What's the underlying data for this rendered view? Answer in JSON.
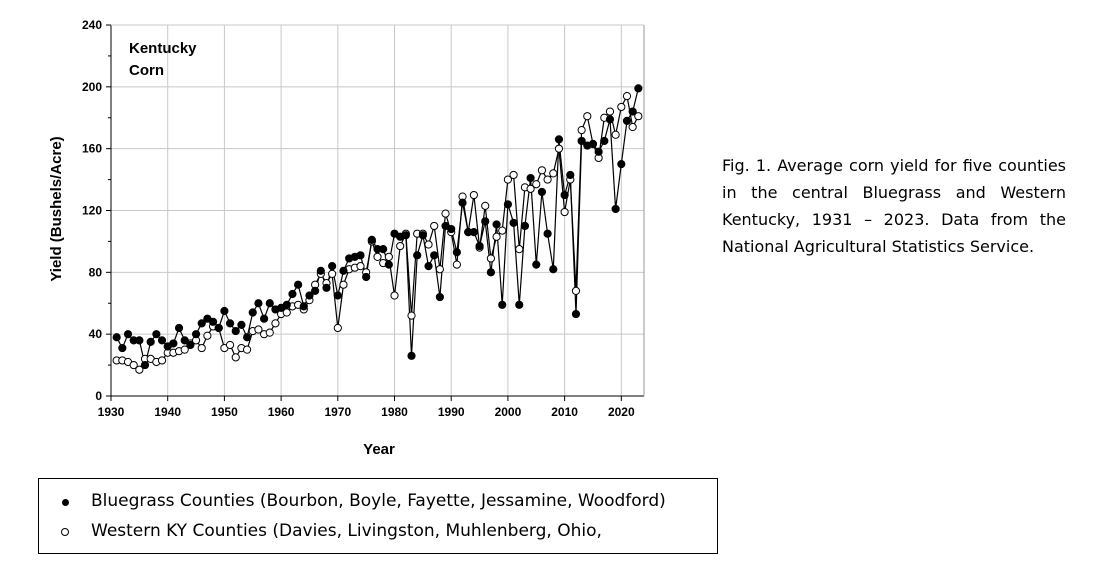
{
  "chart_data": {
    "type": "line",
    "inset_label": [
      "Kentucky",
      "Corn"
    ],
    "xlabel": "Year",
    "ylabel": "Yield (Bushels/Acre)",
    "xlim": [
      1930,
      2024
    ],
    "ylim": [
      0,
      240
    ],
    "xticks": [
      1930,
      1940,
      1950,
      1960,
      1970,
      1980,
      1990,
      2000,
      2010,
      2020
    ],
    "yticks": [
      0,
      40,
      80,
      120,
      160,
      200,
      240
    ],
    "grid": true,
    "x": [
      1931,
      1932,
      1933,
      1934,
      1935,
      1936,
      1937,
      1938,
      1939,
      1940,
      1941,
      1942,
      1943,
      1944,
      1945,
      1946,
      1947,
      1948,
      1949,
      1950,
      1951,
      1952,
      1953,
      1954,
      1955,
      1956,
      1957,
      1958,
      1959,
      1960,
      1961,
      1962,
      1963,
      1964,
      1965,
      1966,
      1967,
      1968,
      1969,
      1970,
      1971,
      1972,
      1973,
      1974,
      1975,
      1976,
      1977,
      1978,
      1979,
      1980,
      1981,
      1982,
      1983,
      1984,
      1985,
      1986,
      1987,
      1988,
      1989,
      1990,
      1991,
      1992,
      1993,
      1994,
      1995,
      1996,
      1997,
      1998,
      1999,
      2000,
      2001,
      2002,
      2003,
      2004,
      2005,
      2006,
      2007,
      2008,
      2009,
      2010,
      2011,
      2012,
      2013,
      2014,
      2015,
      2016,
      2017,
      2018,
      2019,
      2020,
      2021,
      2022,
      2023
    ],
    "series": [
      {
        "name": "Bluegrass Counties (Bourbon, Boyle, Fayette, Jessamine, Woodford)",
        "marker": "filled",
        "values": [
          38,
          31,
          40,
          36,
          36,
          20,
          35,
          40,
          36,
          32,
          34,
          44,
          36,
          33,
          40,
          47,
          50,
          48,
          44,
          55,
          47,
          42,
          46,
          38,
          54,
          60,
          50,
          60,
          56,
          57,
          59,
          66,
          72,
          58,
          65,
          68,
          81,
          70,
          84,
          65,
          81,
          89,
          90,
          91,
          77,
          101,
          95,
          95,
          85,
          105,
          103,
          104,
          26,
          91,
          104,
          84,
          91,
          64,
          110,
          108,
          93,
          125,
          106,
          106,
          97,
          113,
          80,
          111,
          59,
          124,
          112,
          59,
          110,
          141,
          85,
          132,
          105,
          82,
          166,
          130,
          143,
          53,
          165,
          162,
          163,
          158,
          165,
          179,
          121,
          150,
          178,
          184,
          199
        ]
      },
      {
        "name": "Western KY Counties (Davies, Livingston, Muhlenberg, Ohio,",
        "marker": "open",
        "values": [
          23,
          23,
          22,
          20,
          17,
          24,
          24,
          22,
          23,
          28,
          28,
          29,
          30,
          34,
          36,
          31,
          39,
          45,
          44,
          31,
          33,
          25,
          31,
          30,
          42,
          43,
          40,
          41,
          47,
          53,
          54,
          58,
          59,
          56,
          62,
          72,
          79,
          73,
          79,
          44,
          72,
          82,
          83,
          84,
          80,
          100,
          90,
          86,
          90,
          65,
          97,
          105,
          52,
          105,
          105,
          98,
          110,
          82,
          118,
          106,
          85,
          129,
          106,
          130,
          96,
          123,
          89,
          103,
          107,
          140,
          143,
          95,
          135,
          134,
          137,
          146,
          140,
          144,
          160,
          119,
          140,
          68,
          172,
          181,
          163,
          154,
          180,
          184,
          169,
          187,
          194,
          174,
          181
        ]
      }
    ]
  },
  "caption": "Fig. 1.  Average corn yield for five counties in the central Bluegrass and Western Kentucky, 1931 – 2023. Data from the National Agricultural Statistics Service.",
  "legend": [
    {
      "marker": "filled",
      "label": "Bluegrass Counties (Bourbon, Boyle, Fayette, Jessamine, Woodford)"
    },
    {
      "marker": "open",
      "label": "Western KY Counties (Davies, Livingston, Muhlenberg, Ohio,"
    }
  ]
}
